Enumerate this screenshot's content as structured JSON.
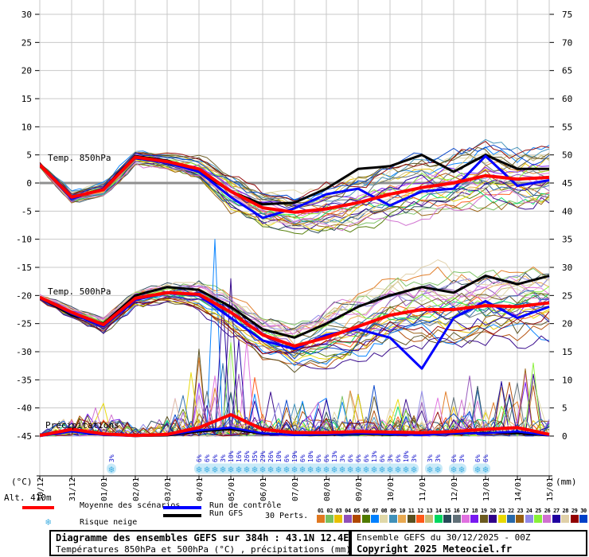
{
  "axes": {
    "left_unit": "(°C)",
    "right_unit": "(mm)",
    "altitude_label": "Alt. 410m",
    "left_ticks": [
      30,
      25,
      20,
      15,
      10,
      5,
      0,
      -5,
      -10,
      -15,
      -20,
      -25,
      -30,
      -35,
      -40,
      -45
    ],
    "right_ticks": [
      75,
      70,
      65,
      60,
      55,
      50,
      45,
      40,
      35,
      30,
      25,
      20,
      15,
      10,
      5,
      0
    ]
  },
  "chart_data": {
    "type": "line",
    "title": "Diagramme des ensembles GEFS sur 384h : 43.1N 12.4E",
    "x_dates": [
      "30/12",
      "31/12",
      "01/01",
      "02/01",
      "03/01",
      "04/01",
      "05/01",
      "06/01",
      "07/01",
      "08/01",
      "09/01",
      "10/01",
      "11/01",
      "12/01",
      "13/01",
      "14/01",
      "15/01"
    ],
    "ylim_left": [
      -45,
      30
    ],
    "ylim_right": [
      0,
      75
    ],
    "grid": true,
    "n_members": 30,
    "panels": [
      {
        "id": "t850",
        "label": "Temp. 850hPa",
        "unit": "°C",
        "series": [
          {
            "name": "Moyenne des scénarios",
            "values": [
              3.2,
              -2.5,
              -1.2,
              4.6,
              3.8,
              2.5,
              -1.5,
              -4.4,
              -5.2,
              -4.6,
              -3.5,
              -2.0,
              -0.8,
              0.0,
              1.3,
              0.7,
              1.0
            ]
          },
          {
            "name": "Run de contrôle",
            "values": [
              3.2,
              -2.8,
              -1.0,
              4.4,
              3.6,
              2.0,
              -2.5,
              -6.2,
              -4.5,
              -2.0,
              -1.0,
              -4.0,
              -1.5,
              -1.0,
              4.8,
              -0.5,
              0.5
            ]
          },
          {
            "name": "Run GFS",
            "values": [
              3.2,
              -2.6,
              -1.0,
              4.8,
              4.0,
              2.0,
              -1.5,
              -3.8,
              -3.5,
              -1.0,
              2.5,
              3.0,
              5.0,
              2.0,
              5.0,
              2.5,
              2.5
            ]
          }
        ],
        "ensemble_spread": [
          0.4,
          0.9,
          1.1,
          1.0,
          1.3,
          1.8,
          2.6,
          2.6,
          3.0,
          3.6,
          4.0,
          4.4,
          4.6,
          4.6,
          4.6,
          4.6,
          4.8
        ],
        "member_range": [
          -10.5,
          9.5
        ]
      },
      {
        "id": "t500",
        "label": "Temp. 500hPa",
        "unit": "°C",
        "series": [
          {
            "name": "Moyenne des scénarios",
            "values": [
              -20.3,
              -23.0,
              -25.2,
              -20.5,
              -19.5,
              -19.8,
              -23.0,
              -27.0,
              -29.0,
              -27.5,
              -25.5,
              -23.5,
              -22.5,
              -22.5,
              -21.8,
              -22.0,
              -21.3
            ]
          },
          {
            "name": "Run de contrôle",
            "values": [
              -20.3,
              -23.2,
              -25.5,
              -20.8,
              -19.5,
              -20.0,
              -24.0,
              -28.0,
              -29.5,
              -27.0,
              -26.0,
              -27.5,
              -33.0,
              -24.0,
              -21.0,
              -24.0,
              -22.0
            ]
          },
          {
            "name": "Run GFS",
            "values": [
              -20.3,
              -23.5,
              -25.0,
              -20.0,
              -18.5,
              -19.0,
              -22.0,
              -26.0,
              -27.5,
              -25.0,
              -22.0,
              -20.0,
              -18.5,
              -19.5,
              -16.5,
              -18.0,
              -16.5
            ]
          }
        ],
        "ensemble_spread": [
          0.4,
          0.8,
          1.2,
          1.3,
          1.6,
          2.2,
          2.8,
          3.2,
          3.6,
          4.6,
          5.0,
          5.2,
          5.4,
          5.6,
          5.6,
          5.6,
          5.6
        ],
        "member_range": [
          -37.5,
          -13.5
        ]
      },
      {
        "id": "precip",
        "label": "Précipitations",
        "unit": "mm",
        "series": [
          {
            "name": "Moyenne des scénarios",
            "values": [
              0.1,
              1.2,
              0.4,
              0.1,
              0.3,
              1.5,
              3.8,
              1.2,
              0.6,
              0.6,
              0.8,
              0.7,
              0.6,
              0.8,
              1.2,
              1.5,
              0.3
            ]
          },
          {
            "name": "Run de contrôle",
            "values": [
              0,
              0.8,
              0.2,
              0,
              0.2,
              1.0,
              1.5,
              0.5,
              0.2,
              0.3,
              0.5,
              0.3,
              0.2,
              0.5,
              0.5,
              0.8,
              0.1
            ]
          },
          {
            "name": "Run GFS",
            "values": [
              0,
              1.0,
              0.3,
              0,
              0.1,
              0.8,
              1.2,
              0.4,
              0.2,
              0.2,
              0.4,
              0.2,
              0.3,
              0.4,
              0.6,
              0.5,
              0.1
            ]
          }
        ],
        "ensemble_max": [
          0.5,
          4,
          6,
          1.5,
          4,
          16,
          20,
          10,
          6,
          7,
          9,
          7,
          8,
          12,
          10,
          14,
          6
        ],
        "big_spikes": [
          {
            "member": 7,
            "day": 5.5,
            "mm": 35
          },
          {
            "member": 27,
            "day": 5.75,
            "mm": 24
          },
          {
            "member": 20,
            "day": 6.0,
            "mm": 28
          },
          {
            "member": 17,
            "day": 6.5,
            "mm": 17
          },
          {
            "member": 4,
            "day": 6.25,
            "mm": 11
          },
          {
            "member": 16,
            "day": 5.25,
            "mm": 8
          },
          {
            "member": 30,
            "day": 10.5,
            "mm": 9
          },
          {
            "member": 25,
            "day": 15.4,
            "mm": 13
          },
          {
            "member": 20,
            "day": 15.5,
            "mm": 11
          }
        ]
      }
    ]
  },
  "colors": {
    "mean": "#ff0000",
    "control": "#0000ff",
    "gfs": "#000000",
    "grid": "#c9c9c9",
    "zero_line": "#909090",
    "snow_flake": "#45b0e2",
    "snow_halo": "#c9eaf8",
    "snow_pct_text": "#1111cc",
    "members": [
      "#e07820",
      "#78c060",
      "#e8c000",
      "#9050b8",
      "#b04800",
      "#4f7a00",
      "#0080ff",
      "#e0d8a8",
      "#4090b8",
      "#e8a850",
      "#585020",
      "#ff5818",
      "#c8bc78",
      "#00d860",
      "#284858",
      "#607078",
      "#e070e0",
      "#7818f0",
      "#6a5a20",
      "#300088",
      "#e8d800",
      "#2868a8",
      "#985f10",
      "#9088e8",
      "#88f038",
      "#d070d0",
      "#2000a0",
      "#e0d0a8",
      "#900000",
      "#0040c8"
    ]
  },
  "legend": {
    "mean_label": "Moyenne des scénarios",
    "control_label": "Run de contrôle",
    "gfs_label": "Run GFS",
    "perts_label": "30 Perts.",
    "snow_label": "Risque neige",
    "snow_icon": "❄",
    "pert_numbers": [
      "01",
      "02",
      "03",
      "04",
      "05",
      "06",
      "07",
      "08",
      "09",
      "10",
      "11",
      "12",
      "13",
      "14",
      "15",
      "16",
      "17",
      "18",
      "19",
      "20",
      "21",
      "22",
      "23",
      "24",
      "25",
      "26",
      "27",
      "28",
      "29",
      "30"
    ]
  },
  "snow_risk": {
    "points": [
      {
        "d": 2.25,
        "pct": "3%"
      },
      {
        "d": 5.0,
        "pct": "6%"
      },
      {
        "d": 5.25,
        "pct": "6%"
      },
      {
        "d": 5.5,
        "pct": "6%"
      },
      {
        "d": 5.75,
        "pct": "3%"
      },
      {
        "d": 6.0,
        "pct": "10%"
      },
      {
        "d": 6.25,
        "pct": "16%"
      },
      {
        "d": 6.5,
        "pct": "26%"
      },
      {
        "d": 6.75,
        "pct": "35%"
      },
      {
        "d": 7.0,
        "pct": "29%"
      },
      {
        "d": 7.25,
        "pct": "26%"
      },
      {
        "d": 7.5,
        "pct": "10%"
      },
      {
        "d": 7.75,
        "pct": "6%"
      },
      {
        "d": 8.0,
        "pct": "19%"
      },
      {
        "d": 8.25,
        "pct": "6%"
      },
      {
        "d": 8.5,
        "pct": "10%"
      },
      {
        "d": 8.75,
        "pct": "6%"
      },
      {
        "d": 9.0,
        "pct": "6%"
      },
      {
        "d": 9.25,
        "pct": "13%"
      },
      {
        "d": 9.5,
        "pct": "3%"
      },
      {
        "d": 9.75,
        "pct": "6%"
      },
      {
        "d": 10.0,
        "pct": "6%"
      },
      {
        "d": 10.25,
        "pct": "6%"
      },
      {
        "d": 10.5,
        "pct": "13%"
      },
      {
        "d": 10.75,
        "pct": "6%"
      },
      {
        "d": 11.0,
        "pct": "3%"
      },
      {
        "d": 11.25,
        "pct": "6%"
      },
      {
        "d": 11.5,
        "pct": "10%"
      },
      {
        "d": 11.75,
        "pct": "3%"
      },
      {
        "d": 12.25,
        "pct": "3%"
      },
      {
        "d": 12.5,
        "pct": "3%"
      },
      {
        "d": 13.0,
        "pct": "6%"
      },
      {
        "d": 13.25,
        "pct": "3%"
      },
      {
        "d": 13.75,
        "pct": "6%"
      },
      {
        "d": 14.0,
        "pct": "6%"
      }
    ]
  },
  "footer": {
    "left": {
      "title": "Diagramme des ensembles GEFS sur 384h : 43.1N 12.4E",
      "subtitle": "Températures 850hPa et 500hPa (°C) , précipitations (mm)"
    },
    "right": {
      "run_info": "Ensemble GEFS du 30/12/2025 - 00Z",
      "copyright": "Copyright 2025 Meteociel.fr"
    }
  }
}
